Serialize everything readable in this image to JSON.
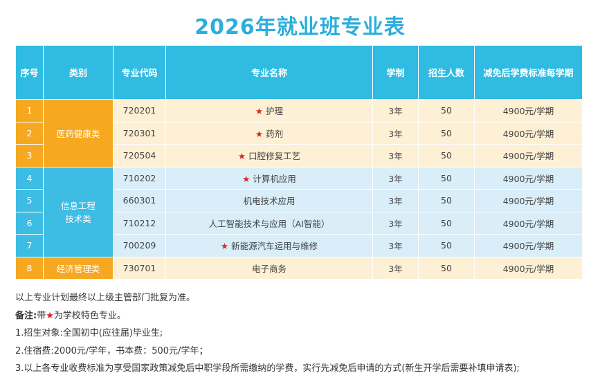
{
  "header": {
    "title": "2026年就业班专业表"
  },
  "table": {
    "columns": [
      "序号",
      "类别",
      "专业代码",
      "专业名称",
      "学制",
      "招生人数",
      "减免后学费标准每学期"
    ],
    "groups": [
      {
        "category_lines": [
          "医药健康类"
        ],
        "theme": "orange",
        "rows": [
          {
            "no": "1",
            "code": "720201",
            "star": "★",
            "name": "护理",
            "duration": "3年",
            "enroll": "50",
            "fee": "4900元/学期"
          },
          {
            "no": "2",
            "code": "720301",
            "star": "★",
            "name": "药剂",
            "duration": "3年",
            "enroll": "50",
            "fee": "4900元/学期"
          },
          {
            "no": "3",
            "code": "720504",
            "star": "★",
            "name": "口腔修复工艺",
            "duration": "3年",
            "enroll": "50",
            "fee": "4900元/学期"
          }
        ]
      },
      {
        "category_lines": [
          "信息工程",
          "技术类"
        ],
        "theme": "blue",
        "rows": [
          {
            "no": "4",
            "code": "710202",
            "star": "★",
            "name": "计算机应用",
            "duration": "3年",
            "enroll": "50",
            "fee": "4900元/学期"
          },
          {
            "no": "5",
            "code": "660301",
            "name": "机电技术应用",
            "duration": "3年",
            "enroll": "50",
            "fee": "4900元/学期"
          },
          {
            "no": "6",
            "code": "710212",
            "name": "人工智能技术与应用（AI智能）",
            "duration": "3年",
            "enroll": "50",
            "fee": "4900元/学期"
          },
          {
            "no": "7",
            "code": "700209",
            "star": "★",
            "name": "新能源汽车运用与维修",
            "duration": "3年",
            "enroll": "50",
            "fee": "4900元/学期"
          }
        ]
      },
      {
        "category_lines": [
          "经济管理类"
        ],
        "theme": "orange",
        "rows": [
          {
            "no": "8",
            "code": "730701",
            "name": "电子商务",
            "duration": "3年",
            "enroll": "50",
            "fee": "4900元/学期"
          }
        ]
      }
    ]
  },
  "notes": {
    "intro": "以上专业计划最终以上级主管部门批复为准。",
    "remark": {
      "label": "备注:",
      "prefix": "带",
      "star": "★",
      "suffix": "为学校特色专业。"
    },
    "items": [
      "1.招生对象:全国初中(应往届)毕业生;",
      "2.住宿费:2000元/学年，书本费：500元/学年；",
      "3.以上各专业收费标准为享受国家政策减免后中职学段所需缴纳的学费，实行先减免后申请的方式(新生开学后需要补填申请表);"
    ]
  }
}
